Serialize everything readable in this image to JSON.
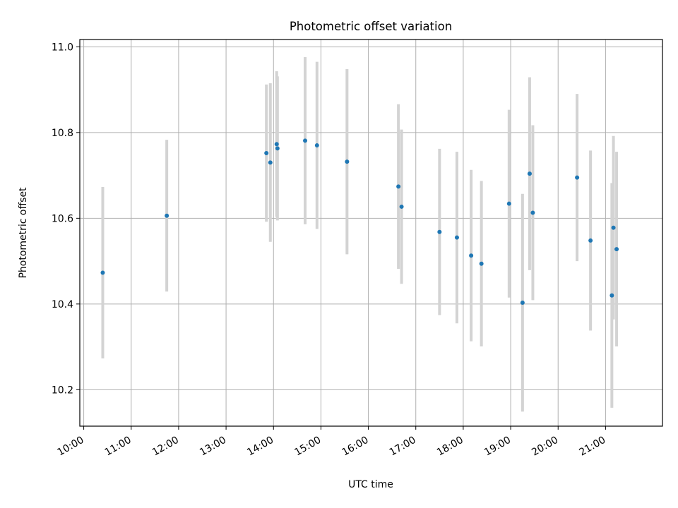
{
  "chart_data": {
    "type": "scatter",
    "title": "Photometric offset variation",
    "xlabel": "UTC time",
    "ylabel": "Photometric offset",
    "xlim": [
      "09:55",
      "22:12"
    ],
    "ylim": [
      10.115,
      11.017
    ],
    "x_ticks": [
      "10:00",
      "11:00",
      "12:00",
      "13:00",
      "14:00",
      "15:00",
      "16:00",
      "17:00",
      "18:00",
      "19:00",
      "20:00",
      "21:00"
    ],
    "y_ticks": [
      "10.2",
      "10.4",
      "10.6",
      "10.8",
      "11.0"
    ],
    "grid": true,
    "colors": {
      "points": "#1f77b4",
      "errorbars": "#d3d3d3",
      "grid": "#b0b0b0"
    },
    "points": [
      {
        "x": "10:24",
        "y": 10.473,
        "err": 0.2
      },
      {
        "x": "11:45",
        "y": 10.606,
        "err": 0.177
      },
      {
        "x": "13:51",
        "y": 10.752,
        "err": 0.16
      },
      {
        "x": "13:56",
        "y": 10.73,
        "err": 0.185
      },
      {
        "x": "14:04",
        "y": 10.773,
        "err": 0.17
      },
      {
        "x": "14:05",
        "y": 10.763,
        "err": 0.168
      },
      {
        "x": "14:40",
        "y": 10.781,
        "err": 0.195
      },
      {
        "x": "14:55",
        "y": 10.77,
        "err": 0.195
      },
      {
        "x": "15:33",
        "y": 10.732,
        "err": 0.216
      },
      {
        "x": "16:38",
        "y": 10.674,
        "err": 0.192
      },
      {
        "x": "16:42",
        "y": 10.627,
        "err": 0.18
      },
      {
        "x": "17:30",
        "y": 10.568,
        "err": 0.194
      },
      {
        "x": "17:52",
        "y": 10.555,
        "err": 0.2
      },
      {
        "x": "18:10",
        "y": 10.513,
        "err": 0.2
      },
      {
        "x": "18:23",
        "y": 10.494,
        "err": 0.193
      },
      {
        "x": "18:58",
        "y": 10.634,
        "err": 0.219
      },
      {
        "x": "19:15",
        "y": 10.403,
        "err": 0.254
      },
      {
        "x": "19:24",
        "y": 10.704,
        "err": 0.225
      },
      {
        "x": "19:28",
        "y": 10.613,
        "err": 0.204
      },
      {
        "x": "20:24",
        "y": 10.695,
        "err": 0.195
      },
      {
        "x": "20:41",
        "y": 10.548,
        "err": 0.21
      },
      {
        "x": "21:08",
        "y": 10.42,
        "err": 0.262
      },
      {
        "x": "21:10",
        "y": 10.578,
        "err": 0.214
      },
      {
        "x": "21:14",
        "y": 10.528,
        "err": 0.227
      }
    ]
  }
}
